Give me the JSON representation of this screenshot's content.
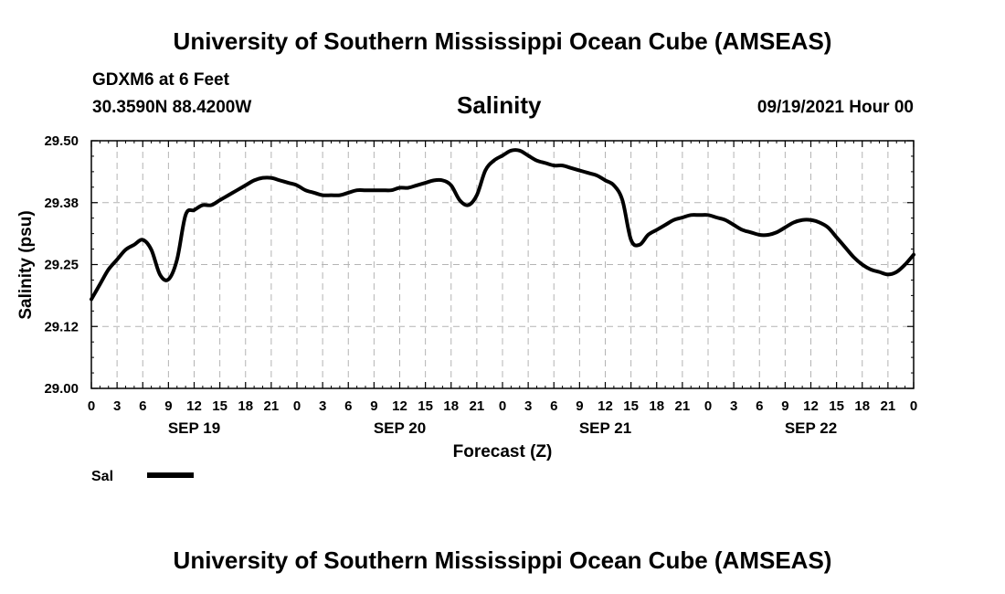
{
  "header": {
    "title": "University of Southern Mississippi Ocean Cube (AMSEAS)",
    "station": "GDXM6 at 6 Feet",
    "coords": "30.3590N  88.4200W",
    "variable": "Salinity",
    "run_time": "09/19/2021 Hour 00"
  },
  "footer": {
    "title": "University of Southern Mississippi Ocean Cube (AMSEAS)"
  },
  "chart_data": {
    "type": "line",
    "xlabel": "Forecast (Z)",
    "ylabel": "Salinity (psu)",
    "xlim": [
      0,
      96
    ],
    "ylim": [
      29.0,
      29.5
    ],
    "grid": true,
    "x_ticks": [
      "0",
      "3",
      "6",
      "9",
      "12",
      "15",
      "18",
      "21",
      "0",
      "3",
      "6",
      "9",
      "12",
      "15",
      "18",
      "21",
      "0",
      "3",
      "6",
      "9",
      "12",
      "15",
      "18",
      "21",
      "0",
      "3",
      "6",
      "9",
      "12",
      "15",
      "18",
      "21",
      "0"
    ],
    "y_ticks": [
      "29.00",
      "29.12",
      "29.25",
      "29.38",
      "29.50"
    ],
    "day_labels": [
      {
        "label": "SEP 19",
        "hour": 12
      },
      {
        "label": "SEP 20",
        "hour": 36
      },
      {
        "label": "SEP 21",
        "hour": 60
      },
      {
        "label": "SEP 22",
        "hour": 84
      }
    ],
    "legend": {
      "label": "Sal",
      "position": "bottom-left"
    },
    "line_color": "#000000",
    "series": [
      {
        "name": "Sal",
        "x": [
          0,
          1,
          2,
          3,
          4,
          5,
          6,
          7,
          8,
          9,
          10,
          11,
          12,
          13,
          14,
          15,
          16,
          17,
          18,
          19,
          20,
          21,
          22,
          23,
          24,
          25,
          26,
          27,
          28,
          29,
          30,
          31,
          32,
          33,
          34,
          35,
          36,
          37,
          38,
          39,
          40,
          41,
          42,
          43,
          44,
          45,
          46,
          47,
          48,
          49,
          50,
          51,
          52,
          53,
          54,
          55,
          56,
          57,
          58,
          59,
          60,
          61,
          62,
          63,
          64,
          65,
          66,
          67,
          68,
          69,
          70,
          71,
          72,
          73,
          74,
          75,
          76,
          77,
          78,
          79,
          80,
          81,
          82,
          83,
          84,
          85,
          86,
          87,
          88,
          89,
          90,
          91,
          92,
          93,
          94,
          95,
          96
        ],
        "values": [
          29.18,
          29.21,
          29.24,
          29.26,
          29.28,
          29.29,
          29.3,
          29.28,
          29.23,
          29.22,
          29.26,
          29.35,
          29.36,
          29.37,
          29.37,
          29.38,
          29.39,
          29.4,
          29.41,
          29.42,
          29.425,
          29.425,
          29.42,
          29.415,
          29.41,
          29.4,
          29.395,
          29.39,
          29.39,
          29.39,
          29.395,
          29.4,
          29.4,
          29.4,
          29.4,
          29.4,
          29.405,
          29.405,
          29.41,
          29.415,
          29.42,
          29.42,
          29.41,
          29.38,
          29.37,
          29.39,
          29.44,
          29.46,
          29.47,
          29.48,
          29.48,
          29.47,
          29.46,
          29.455,
          29.45,
          29.45,
          29.445,
          29.44,
          29.435,
          29.43,
          29.42,
          29.41,
          29.38,
          29.3,
          29.29,
          29.31,
          29.32,
          29.33,
          29.34,
          29.345,
          29.35,
          29.35,
          29.35,
          29.345,
          29.34,
          29.33,
          29.32,
          29.315,
          29.31,
          29.31,
          29.315,
          29.325,
          29.335,
          29.34,
          29.34,
          29.335,
          29.325,
          29.305,
          29.285,
          29.265,
          29.25,
          29.24,
          29.235,
          29.23,
          29.235,
          29.25,
          29.27
        ]
      }
    ]
  }
}
